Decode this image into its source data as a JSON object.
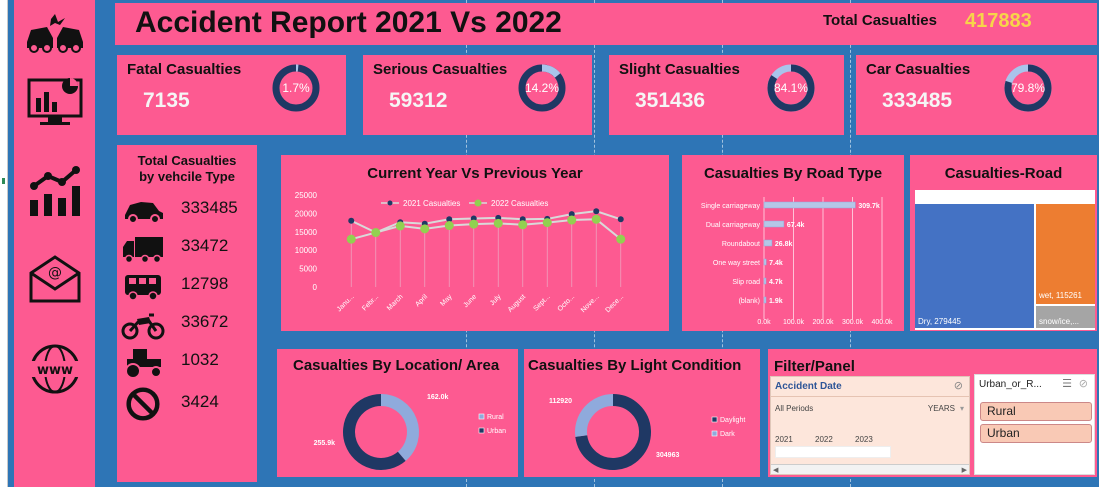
{
  "header": {
    "title": "Accident Report 2021 Vs 2022",
    "total_label": "Total Casualties",
    "total_value": "417883"
  },
  "kpis": [
    {
      "label": "Fatal Casualties",
      "value": "7135",
      "pct": "1.7%",
      "fraction": 0.017
    },
    {
      "label": "Serious Casualties",
      "value": "59312",
      "pct": "14.2%",
      "fraction": 0.142
    },
    {
      "label": "Slight Casualties",
      "value": "351436",
      "pct": "84.1%",
      "fraction": 0.841
    },
    {
      "label": "Car Casualties",
      "value": "333485",
      "pct": "79.8%",
      "fraction": 0.798
    }
  ],
  "vehicle": {
    "title_line1": "Total Casualties",
    "title_line2": "by vehcile Type",
    "rows": [
      {
        "icon": "car-icon",
        "value": "333485"
      },
      {
        "icon": "truck-icon",
        "value": "33472"
      },
      {
        "icon": "bus-icon",
        "value": "12798"
      },
      {
        "icon": "motorbike-icon",
        "value": "33672"
      },
      {
        "icon": "tractor-icon",
        "value": "1032"
      },
      {
        "icon": "no-entry-icon",
        "value": "3424"
      }
    ]
  },
  "sidebar_icons": [
    "car-crash-icon",
    "dashboard-icon",
    "analytics-icon",
    "email-icon",
    "www-icon"
  ],
  "chart_data": [
    {
      "type": "line",
      "title": "Current Year Vs Previous Year",
      "categories": [
        "Janu...",
        "Febr...",
        "March",
        "April",
        "May",
        "June",
        "July",
        "August",
        "Sept...",
        "Octo...",
        "Nove...",
        "Dece..."
      ],
      "ylim": [
        0,
        25000
      ],
      "yticks": [
        "0",
        "5000",
        "10000",
        "15000",
        "20000",
        "25000"
      ],
      "series": [
        {
          "name": "2021 Casualties",
          "color": "#1f3864",
          "values": [
            18000,
            14800,
            17600,
            17200,
            18400,
            18600,
            18800,
            18400,
            18500,
            19800,
            20600,
            18400
          ]
        },
        {
          "name": "2022 Casualties",
          "color": "#92d050",
          "values": [
            13000,
            14800,
            16600,
            15800,
            16700,
            17100,
            17300,
            16900,
            17500,
            18200,
            18400,
            13000
          ]
        }
      ]
    },
    {
      "type": "bar",
      "title": "Casualties By Road Type",
      "categories": [
        "Single carriageway",
        "Dual carriageway",
        "Roundabout",
        "One way street",
        "Slip road",
        "(blank)"
      ],
      "values": [
        309.7,
        67.4,
        26.8,
        7.4,
        4.7,
        1.9
      ],
      "labels": [
        "309.7k",
        "67.4k",
        "26.8k",
        "7.4k",
        "4.7k",
        "1.9k"
      ],
      "xlim": [
        0,
        400
      ],
      "xticks": [
        "0.0k",
        "100.0k",
        "200.0k",
        "300.0k",
        "400.0k"
      ]
    },
    {
      "type": "treemap",
      "title": "Casualties-Road",
      "items": [
        {
          "name": "Dry",
          "value": 279445,
          "label": "Dry, 279445",
          "color": "#4472c4"
        },
        {
          "name": "wet",
          "value": 115261,
          "label": "wet, 115261",
          "color": "#ed7d31"
        },
        {
          "name": "snow/ice",
          "value": 23177,
          "label": "snow/ice,...",
          "color": "#a5a5a5"
        }
      ]
    },
    {
      "type": "pie",
      "title": "Casualties By Location/ Area",
      "labels": [
        "Rural",
        "Urban"
      ],
      "values": [
        162.0,
        255.9
      ],
      "value_labels": [
        "162.0k",
        "255.9k"
      ],
      "colors": [
        "#8faadc",
        "#1f3864"
      ]
    },
    {
      "type": "pie",
      "title": "Casualties By Light Condition",
      "labels": [
        "Daylight",
        "Dark"
      ],
      "values": [
        304963,
        112920
      ],
      "value_labels": [
        "304963",
        "112920"
      ],
      "colors": [
        "#1f3864",
        "#8faadc"
      ]
    }
  ],
  "filter": {
    "title": "Filter/Panel",
    "date_title": "Accident Date",
    "all_periods": "All Periods",
    "years_label": "YEARS",
    "years": [
      "2021",
      "2022",
      "2023"
    ],
    "urban_title": "Urban_or_R...",
    "urban_items": [
      "Rural",
      "Urban"
    ]
  },
  "colors": {
    "panel": "#fd5a91",
    "background": "#2e75b6",
    "accent": "#f7d44a",
    "ring_dark": "#1f3864",
    "ring_light": "#a9c4eb"
  }
}
